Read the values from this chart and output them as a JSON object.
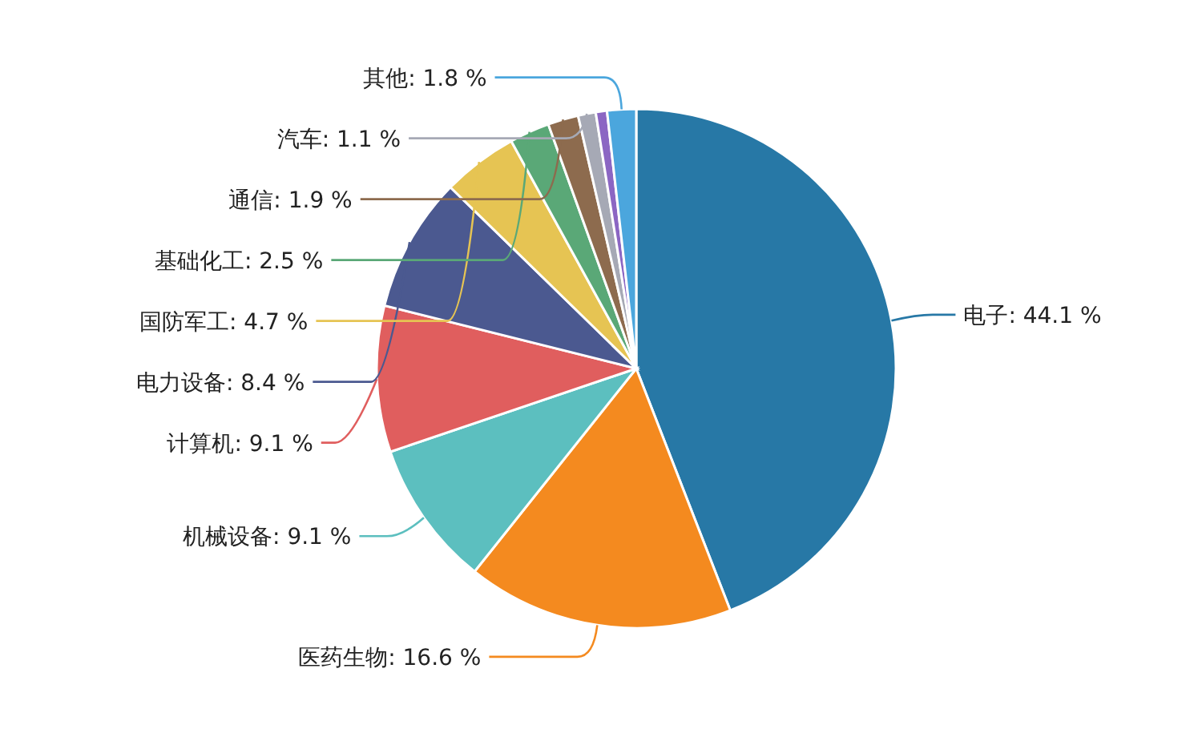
{
  "chart_data": {
    "type": "pie",
    "value_labels": [
      ": 44.1 %",
      ": 16.6 %",
      ": 9.1 %",
      ": 9.1 %",
      ": 8.4 %",
      ": 4.7 %",
      ": 2.5 %",
      ": 1.9 %",
      ": 1.1 %",
      null,
      ": 1.8 %"
    ],
    "categories": [
      "电子",
      "医药生物",
      "机械设备",
      "计算机",
      "电力设备",
      "国防军工",
      "基础化工",
      "通信",
      "汽车",
      null,
      "其他"
    ],
    "values": [
      44.1,
      16.6,
      9.1,
      9.1,
      8.4,
      4.7,
      2.5,
      1.9,
      1.1,
      0.7,
      1.8
    ],
    "colors": [
      "#2778a6",
      "#f48a1f",
      "#5cbfbf",
      "#e05e5e",
      "#4b5990",
      "#e6c453",
      "#5aa877",
      "#8d6b4e",
      "#a6a9b5",
      "#8b66c3",
      "#4ba6dd"
    ]
  }
}
